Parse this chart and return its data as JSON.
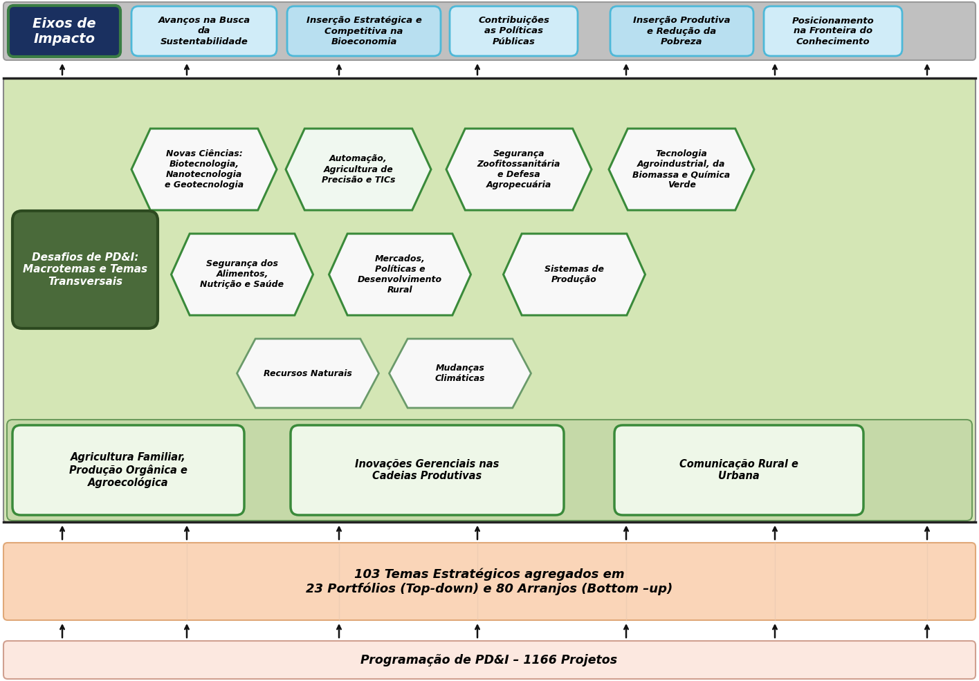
{
  "bg_outer": "#ffffff",
  "bg_gray_band": "#c0c0c0",
  "bg_green_main": "#d4e6b5",
  "bg_green_bottom_strip": "#c5d9a8",
  "bg_peach": "#fad5b8",
  "bg_pink_light": "#fce8e0",
  "eixos_box": {
    "text": "Eixos de\nImpacto",
    "bg": "#1a3060",
    "border": "#3a7d44",
    "text_color": "#ffffff",
    "fontsize": 14
  },
  "impact_boxes": [
    {
      "text": "Avanços na Busca\nda\nSustentabilidade",
      "bg": "#d0ecf8",
      "border": "#4db8d8"
    },
    {
      "text": "Inserção Estratégica e\nCompetitiva na\nBioeconomia",
      "bg": "#b8dff0",
      "border": "#4db8d8"
    },
    {
      "text": "Contribuições\nas Políticas\nPúblicas",
      "bg": "#d0ecf8",
      "border": "#4db8d8"
    },
    {
      "text": "Inserção Produtiva\ne Redução da\nPobreza",
      "bg": "#b8dff0",
      "border": "#4db8d8"
    },
    {
      "text": "Posicionamento\nna Fronteira do\nConhecimento",
      "bg": "#d0ecf8",
      "border": "#4db8d8"
    }
  ],
  "desafios_box": {
    "text": "Desafios de PD&I:\nMacrotemas e Temas\nTransversais",
    "bg": "#4a6a3a",
    "border": "#2d4a20",
    "text_color": "#ffffff",
    "fontsize": 11
  },
  "hexagons_row1": [
    {
      "text": "Novas Ciências:\nBiotecnologia,\nNanotecnologia\ne Geotecnologia",
      "bg": "#f8f8f8",
      "border": "#3a8a3a"
    },
    {
      "text": "Automação,\nAgricultura de\nPrecisão e TICs",
      "bg": "#f0f8f0",
      "border": "#3a8a3a"
    },
    {
      "text": "Segurança\nZoofitossanitária\ne Defesa\nAgropecuária",
      "bg": "#f8f8f8",
      "border": "#3a8a3a"
    },
    {
      "text": "Tecnologia\nAgroindustrial, da\nBiomassa e Química\nVerde",
      "bg": "#f8f8f8",
      "border": "#3a8a3a"
    }
  ],
  "hexagons_row2": [
    {
      "text": "Segurança dos\nAlimentos,\nNutrição e Saúde",
      "bg": "#f8f8f8",
      "border": "#3a8a3a"
    },
    {
      "text": "Mercados,\nPolíticas e\nDesenvolvimento\nRural",
      "bg": "#f8f8f8",
      "border": "#3a8a3a"
    },
    {
      "text": "Sistemas de\nProdução",
      "bg": "#f8f8f8",
      "border": "#3a8a3a"
    }
  ],
  "hexagons_row3": [
    {
      "text": "Recursos Naturais",
      "bg": "#f8f8f8",
      "border": "#6a9a6a"
    },
    {
      "text": "Mudanças\nClimáticas",
      "bg": "#f8f8f8",
      "border": "#6a9a6a"
    }
  ],
  "bottom_green_boxes": [
    {
      "text": "Agricultura Familiar,\nProdução Orgânica e\nAgroecológica",
      "bg": "#eef7e8",
      "border": "#3a8a3a"
    },
    {
      "text": "Inovações Gerenciais nas\nCadeias Produtivas",
      "bg": "#eef7e8",
      "border": "#3a8a3a"
    },
    {
      "text": "Comunicação Rural e\nUrbana",
      "bg": "#eef7e8",
      "border": "#3a8a3a"
    }
  ],
  "peach_text": "103 Temas Estratégicos agregados em\n23 Portfólios (Top-down) e 80 Arranjos (Bottom –up)",
  "pink_text": "Programação de PD&I – 1166 Projetos",
  "arrow_color": "#111111",
  "separator_color": "#222222"
}
